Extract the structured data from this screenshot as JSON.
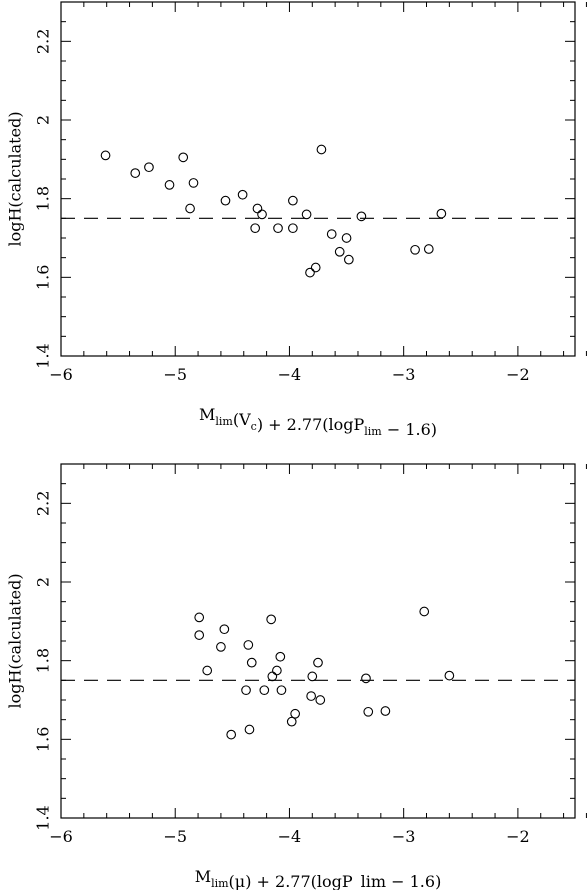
{
  "chart_data": [
    {
      "type": "scatter",
      "title": "",
      "xlabel": {
        "base": "M",
        "sub1": "lim",
        "mid": "(V",
        "sub2": "c",
        "tail": ")  +  2.77(logP",
        "sub3": "lim",
        "end": "  −  1.6)"
      },
      "ylabel": "logH(calculated)",
      "xlim": [
        -6,
        -1.5
      ],
      "ylim": [
        1.4,
        2.3
      ],
      "xticks": [
        -6,
        -5,
        -4,
        -3,
        -2
      ],
      "xtick_labels": [
        "−6",
        "−5",
        "−4",
        "−3",
        "−2"
      ],
      "yticks": [
        1.4,
        1.6,
        1.8,
        2,
        2.2
      ],
      "ytick_labels": [
        "1.4",
        "1.6",
        "1.8",
        "2",
        "2.2"
      ],
      "reference_line_y": 1.75,
      "grid": false,
      "points": [
        {
          "x": -5.61,
          "y": 1.91
        },
        {
          "x": -5.35,
          "y": 1.865
        },
        {
          "x": -5.23,
          "y": 1.88
        },
        {
          "x": -4.93,
          "y": 1.905
        },
        {
          "x": -5.05,
          "y": 1.835
        },
        {
          "x": -4.84,
          "y": 1.84
        },
        {
          "x": -4.87,
          "y": 1.775
        },
        {
          "x": -4.56,
          "y": 1.795
        },
        {
          "x": -4.41,
          "y": 1.81
        },
        {
          "x": -4.28,
          "y": 1.775
        },
        {
          "x": -4.24,
          "y": 1.76
        },
        {
          "x": -4.3,
          "y": 1.725
        },
        {
          "x": -4.1,
          "y": 1.725
        },
        {
          "x": -3.97,
          "y": 1.795
        },
        {
          "x": -3.97,
          "y": 1.725
        },
        {
          "x": -3.85,
          "y": 1.76
        },
        {
          "x": -3.72,
          "y": 1.925
        },
        {
          "x": -3.63,
          "y": 1.71
        },
        {
          "x": -3.56,
          "y": 1.665
        },
        {
          "x": -3.5,
          "y": 1.7
        },
        {
          "x": -3.48,
          "y": 1.645
        },
        {
          "x": -3.77,
          "y": 1.625
        },
        {
          "x": -3.82,
          "y": 1.612
        },
        {
          "x": -3.37,
          "y": 1.755
        },
        {
          "x": -2.9,
          "y": 1.67
        },
        {
          "x": -2.78,
          "y": 1.672
        },
        {
          "x": -2.67,
          "y": 1.762
        }
      ]
    },
    {
      "type": "scatter",
      "title": "",
      "xlabel": {
        "base": "M",
        "sub1": "lim",
        "mid": "(μ)  +  2.77(logP_lim  −  1.6)"
      },
      "ylabel": "logH(calculated)",
      "xlim": [
        -6,
        -1.5
      ],
      "ylim": [
        1.4,
        2.3
      ],
      "xticks": [
        -6,
        -5,
        -4,
        -3,
        -2
      ],
      "xtick_labels": [
        "−6",
        "−5",
        "−4",
        "−3",
        "−2"
      ],
      "yticks": [
        1.4,
        1.6,
        1.8,
        2,
        2.2
      ],
      "ytick_labels": [
        "1.4",
        "1.6",
        "1.8",
        "2",
        "2.2"
      ],
      "reference_line_y": 1.75,
      "grid": false,
      "points": [
        {
          "x": -4.79,
          "y": 1.91
        },
        {
          "x": -4.79,
          "y": 1.865
        },
        {
          "x": -4.57,
          "y": 1.88
        },
        {
          "x": -4.6,
          "y": 1.835
        },
        {
          "x": -4.36,
          "y": 1.84
        },
        {
          "x": -4.72,
          "y": 1.775
        },
        {
          "x": -4.33,
          "y": 1.795
        },
        {
          "x": -4.16,
          "y": 1.905
        },
        {
          "x": -4.08,
          "y": 1.81
        },
        {
          "x": -4.11,
          "y": 1.775
        },
        {
          "x": -4.15,
          "y": 1.76
        },
        {
          "x": -4.38,
          "y": 1.725
        },
        {
          "x": -4.22,
          "y": 1.725
        },
        {
          "x": -4.07,
          "y": 1.725
        },
        {
          "x": -3.75,
          "y": 1.795
        },
        {
          "x": -3.8,
          "y": 1.76
        },
        {
          "x": -3.81,
          "y": 1.71
        },
        {
          "x": -3.73,
          "y": 1.7
        },
        {
          "x": -3.95,
          "y": 1.665
        },
        {
          "x": -3.98,
          "y": 1.645
        },
        {
          "x": -4.35,
          "y": 1.625
        },
        {
          "x": -4.51,
          "y": 1.612
        },
        {
          "x": -3.33,
          "y": 1.755
        },
        {
          "x": -3.31,
          "y": 1.67
        },
        {
          "x": -3.16,
          "y": 1.672
        },
        {
          "x": -2.82,
          "y": 1.925
        },
        {
          "x": -2.6,
          "y": 1.762
        }
      ]
    }
  ]
}
